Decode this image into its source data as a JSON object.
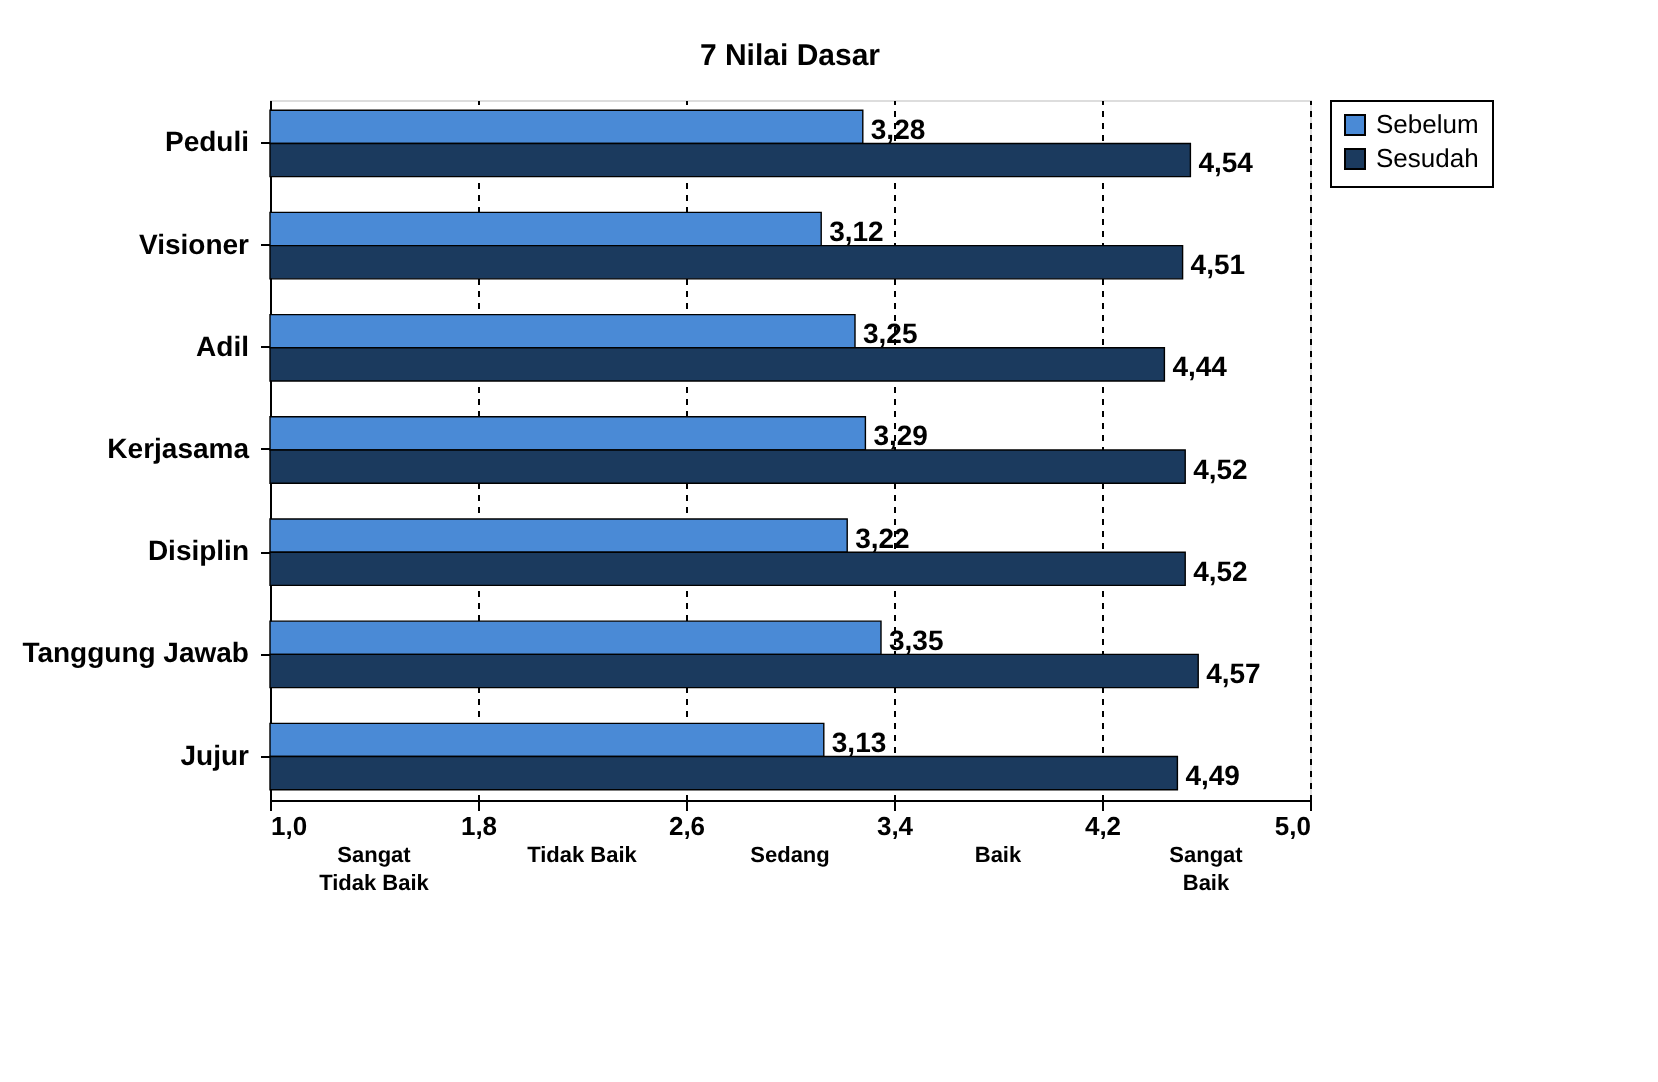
{
  "chart_data": {
    "type": "bar",
    "orientation": "horizontal",
    "title": "7 Nilai Dasar",
    "categories": [
      "Peduli",
      "Visioner",
      "Adil",
      "Kerjasama",
      "Disiplin",
      "Tanggung Jawab",
      "Jujur"
    ],
    "series": [
      {
        "name": "Sebelum",
        "color": "#4a8ad6",
        "values": [
          3.28,
          3.12,
          3.25,
          3.29,
          3.22,
          3.35,
          3.13
        ],
        "value_labels": [
          "3,28",
          "3,12",
          "3,25",
          "3,29",
          "3,22",
          "3,35",
          "3,13"
        ]
      },
      {
        "name": "Sesudah",
        "color": "#1b3a5e",
        "values": [
          4.54,
          4.51,
          4.44,
          4.52,
          4.52,
          4.57,
          4.49
        ],
        "value_labels": [
          "4,54",
          "4,51",
          "4,44",
          "4,52",
          "4,52",
          "4,57",
          "4,49"
        ]
      }
    ],
    "xlim": [
      1.0,
      5.0
    ],
    "xticks": [
      {
        "value": 1.0,
        "label": "1,0"
      },
      {
        "value": 1.8,
        "label": "1,8"
      },
      {
        "value": 2.6,
        "label": "2,6"
      },
      {
        "value": 3.4,
        "label": "3,4"
      },
      {
        "value": 4.2,
        "label": "4,2"
      },
      {
        "value": 5.0,
        "label": "5,0"
      }
    ],
    "grid": "x",
    "legend": "right",
    "annotations": [
      "Sangat\nTidak Baik",
      "Tidak Baik",
      "Sedang",
      "Baik",
      "Sangat\nBaik"
    ]
  }
}
